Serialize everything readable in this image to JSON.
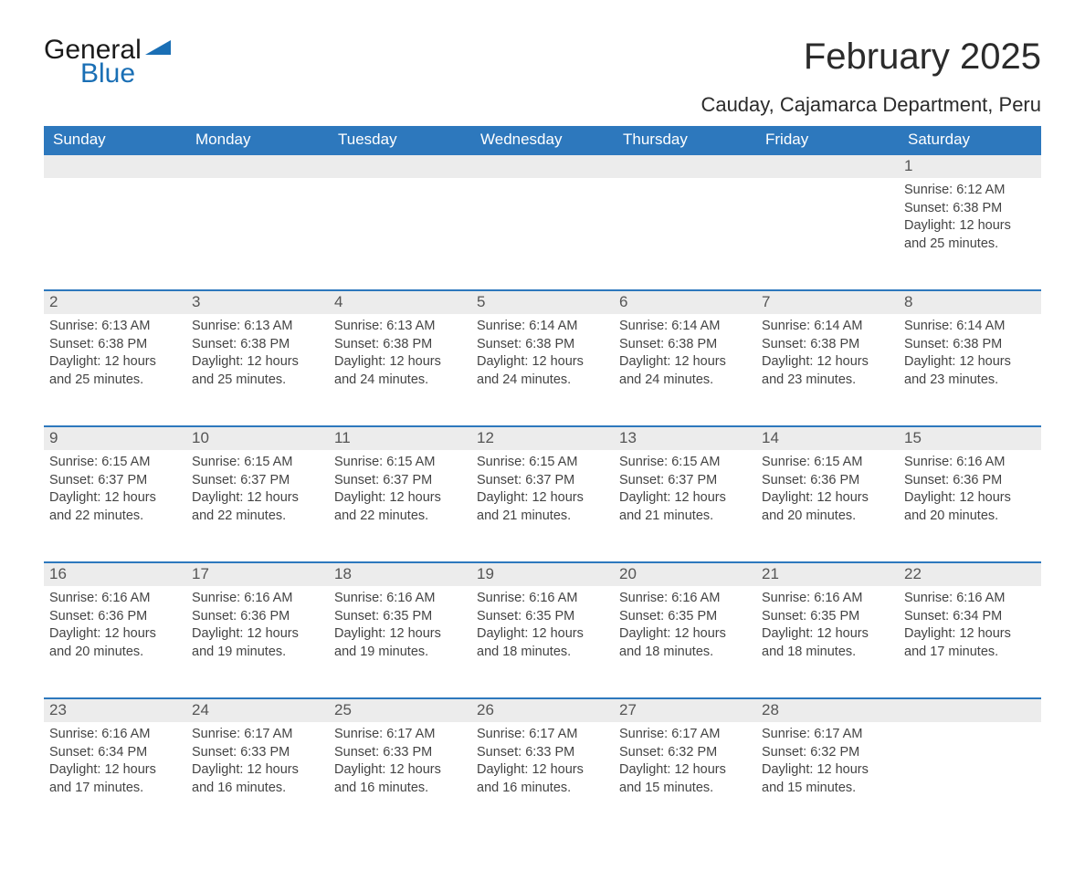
{
  "logo": {
    "general": "General",
    "blue": "Blue",
    "tri_color": "#1a6fb5"
  },
  "title": "February 2025",
  "location": "Cauday, Cajamarca Department, Peru",
  "colors": {
    "header_bg": "#2d78bd",
    "header_text": "#ffffff",
    "day_bar_bg": "#ececec",
    "row_divider": "#2d78bd",
    "text": "#444444"
  },
  "weekdays": [
    "Sunday",
    "Monday",
    "Tuesday",
    "Wednesday",
    "Thursday",
    "Friday",
    "Saturday"
  ],
  "weeks": [
    [
      {
        "blank": true
      },
      {
        "blank": true
      },
      {
        "blank": true
      },
      {
        "blank": true
      },
      {
        "blank": true
      },
      {
        "blank": true
      },
      {
        "n": "1",
        "sunrise": "Sunrise: 6:12 AM",
        "sunset": "Sunset: 6:38 PM",
        "dl1": "Daylight: 12 hours",
        "dl2": "and 25 minutes."
      }
    ],
    [
      {
        "n": "2",
        "sunrise": "Sunrise: 6:13 AM",
        "sunset": "Sunset: 6:38 PM",
        "dl1": "Daylight: 12 hours",
        "dl2": "and 25 minutes."
      },
      {
        "n": "3",
        "sunrise": "Sunrise: 6:13 AM",
        "sunset": "Sunset: 6:38 PM",
        "dl1": "Daylight: 12 hours",
        "dl2": "and 25 minutes."
      },
      {
        "n": "4",
        "sunrise": "Sunrise: 6:13 AM",
        "sunset": "Sunset: 6:38 PM",
        "dl1": "Daylight: 12 hours",
        "dl2": "and 24 minutes."
      },
      {
        "n": "5",
        "sunrise": "Sunrise: 6:14 AM",
        "sunset": "Sunset: 6:38 PM",
        "dl1": "Daylight: 12 hours",
        "dl2": "and 24 minutes."
      },
      {
        "n": "6",
        "sunrise": "Sunrise: 6:14 AM",
        "sunset": "Sunset: 6:38 PM",
        "dl1": "Daylight: 12 hours",
        "dl2": "and 24 minutes."
      },
      {
        "n": "7",
        "sunrise": "Sunrise: 6:14 AM",
        "sunset": "Sunset: 6:38 PM",
        "dl1": "Daylight: 12 hours",
        "dl2": "and 23 minutes."
      },
      {
        "n": "8",
        "sunrise": "Sunrise: 6:14 AM",
        "sunset": "Sunset: 6:38 PM",
        "dl1": "Daylight: 12 hours",
        "dl2": "and 23 minutes."
      }
    ],
    [
      {
        "n": "9",
        "sunrise": "Sunrise: 6:15 AM",
        "sunset": "Sunset: 6:37 PM",
        "dl1": "Daylight: 12 hours",
        "dl2": "and 22 minutes."
      },
      {
        "n": "10",
        "sunrise": "Sunrise: 6:15 AM",
        "sunset": "Sunset: 6:37 PM",
        "dl1": "Daylight: 12 hours",
        "dl2": "and 22 minutes."
      },
      {
        "n": "11",
        "sunrise": "Sunrise: 6:15 AM",
        "sunset": "Sunset: 6:37 PM",
        "dl1": "Daylight: 12 hours",
        "dl2": "and 22 minutes."
      },
      {
        "n": "12",
        "sunrise": "Sunrise: 6:15 AM",
        "sunset": "Sunset: 6:37 PM",
        "dl1": "Daylight: 12 hours",
        "dl2": "and 21 minutes."
      },
      {
        "n": "13",
        "sunrise": "Sunrise: 6:15 AM",
        "sunset": "Sunset: 6:37 PM",
        "dl1": "Daylight: 12 hours",
        "dl2": "and 21 minutes."
      },
      {
        "n": "14",
        "sunrise": "Sunrise: 6:15 AM",
        "sunset": "Sunset: 6:36 PM",
        "dl1": "Daylight: 12 hours",
        "dl2": "and 20 minutes."
      },
      {
        "n": "15",
        "sunrise": "Sunrise: 6:16 AM",
        "sunset": "Sunset: 6:36 PM",
        "dl1": "Daylight: 12 hours",
        "dl2": "and 20 minutes."
      }
    ],
    [
      {
        "n": "16",
        "sunrise": "Sunrise: 6:16 AM",
        "sunset": "Sunset: 6:36 PM",
        "dl1": "Daylight: 12 hours",
        "dl2": "and 20 minutes."
      },
      {
        "n": "17",
        "sunrise": "Sunrise: 6:16 AM",
        "sunset": "Sunset: 6:36 PM",
        "dl1": "Daylight: 12 hours",
        "dl2": "and 19 minutes."
      },
      {
        "n": "18",
        "sunrise": "Sunrise: 6:16 AM",
        "sunset": "Sunset: 6:35 PM",
        "dl1": "Daylight: 12 hours",
        "dl2": "and 19 minutes."
      },
      {
        "n": "19",
        "sunrise": "Sunrise: 6:16 AM",
        "sunset": "Sunset: 6:35 PM",
        "dl1": "Daylight: 12 hours",
        "dl2": "and 18 minutes."
      },
      {
        "n": "20",
        "sunrise": "Sunrise: 6:16 AM",
        "sunset": "Sunset: 6:35 PM",
        "dl1": "Daylight: 12 hours",
        "dl2": "and 18 minutes."
      },
      {
        "n": "21",
        "sunrise": "Sunrise: 6:16 AM",
        "sunset": "Sunset: 6:35 PM",
        "dl1": "Daylight: 12 hours",
        "dl2": "and 18 minutes."
      },
      {
        "n": "22",
        "sunrise": "Sunrise: 6:16 AM",
        "sunset": "Sunset: 6:34 PM",
        "dl1": "Daylight: 12 hours",
        "dl2": "and 17 minutes."
      }
    ],
    [
      {
        "n": "23",
        "sunrise": "Sunrise: 6:16 AM",
        "sunset": "Sunset: 6:34 PM",
        "dl1": "Daylight: 12 hours",
        "dl2": "and 17 minutes."
      },
      {
        "n": "24",
        "sunrise": "Sunrise: 6:17 AM",
        "sunset": "Sunset: 6:33 PM",
        "dl1": "Daylight: 12 hours",
        "dl2": "and 16 minutes."
      },
      {
        "n": "25",
        "sunrise": "Sunrise: 6:17 AM",
        "sunset": "Sunset: 6:33 PM",
        "dl1": "Daylight: 12 hours",
        "dl2": "and 16 minutes."
      },
      {
        "n": "26",
        "sunrise": "Sunrise: 6:17 AM",
        "sunset": "Sunset: 6:33 PM",
        "dl1": "Daylight: 12 hours",
        "dl2": "and 16 minutes."
      },
      {
        "n": "27",
        "sunrise": "Sunrise: 6:17 AM",
        "sunset": "Sunset: 6:32 PM",
        "dl1": "Daylight: 12 hours",
        "dl2": "and 15 minutes."
      },
      {
        "n": "28",
        "sunrise": "Sunrise: 6:17 AM",
        "sunset": "Sunset: 6:32 PM",
        "dl1": "Daylight: 12 hours",
        "dl2": "and 15 minutes."
      },
      {
        "blank": true
      }
    ]
  ]
}
